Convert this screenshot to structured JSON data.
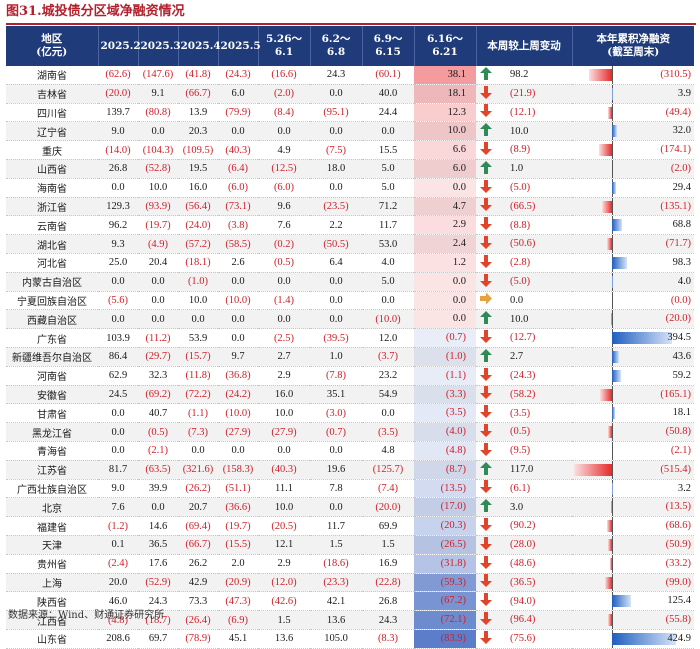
{
  "title": "图31.城投债分区域净融资情况",
  "source": "数据来源：Wind、财通证券研究所",
  "chart_data": {
    "type": "table",
    "columns": [
      "地区\n(亿元)",
      "2025.2",
      "2025.3",
      "2025.4",
      "2025.5",
      "5.26～6.1",
      "6.2～6.8",
      "6.9～6.15",
      "6.16～6.21",
      "本周较上周变动",
      "本年累积净融资\n(截至周末)"
    ],
    "rows": [
      {
        "region": "湖南省",
        "vals": [
          "(62.6)",
          "(147.6)",
          "(41.8)",
          "(24.3)",
          "(16.6)",
          "24.3",
          "(60.1)",
          "38.1"
        ],
        "dir": "up",
        "chg": "98.2",
        "cum": -310.5,
        "cum_label": "(310.5)"
      },
      {
        "region": "吉林省",
        "vals": [
          "(20.0)",
          "9.1",
          "(66.7)",
          "6.0",
          "(2.0)",
          "0.0",
          "40.0",
          "18.1"
        ],
        "dir": "down",
        "chg": "(21.9)",
        "cum": 3.9,
        "cum_label": "3.9"
      },
      {
        "region": "四川省",
        "vals": [
          "139.7",
          "(80.8)",
          "13.9",
          "(79.9)",
          "(8.4)",
          "(95.1)",
          "24.4",
          "12.3"
        ],
        "dir": "down",
        "chg": "(12.1)",
        "cum": -49.4,
        "cum_label": "(49.4)"
      },
      {
        "region": "辽宁省",
        "vals": [
          "9.0",
          "0.0",
          "20.3",
          "0.0",
          "0.0",
          "0.0",
          "0.0",
          "10.0"
        ],
        "dir": "up",
        "chg": "10.0",
        "cum": 32.0,
        "cum_label": "32.0"
      },
      {
        "region": "重庆",
        "vals": [
          "(14.0)",
          "(104.3)",
          "(109.5)",
          "(40.3)",
          "4.9",
          "(7.5)",
          "15.5",
          "6.6"
        ],
        "dir": "down",
        "chg": "(8.9)",
        "cum": -174.1,
        "cum_label": "(174.1)"
      },
      {
        "region": "山西省",
        "vals": [
          "26.8",
          "(52.8)",
          "19.5",
          "(6.4)",
          "(12.5)",
          "18.0",
          "5.0",
          "6.0"
        ],
        "dir": "up",
        "chg": "1.0",
        "cum": -2.0,
        "cum_label": "(2.0)"
      },
      {
        "region": "海南省",
        "vals": [
          "0.0",
          "10.0",
          "16.0",
          "(6.0)",
          "(6.0)",
          "0.0",
          "5.0",
          "0.0"
        ],
        "dir": "down",
        "chg": "(5.0)",
        "cum": 29.4,
        "cum_label": "29.4"
      },
      {
        "region": "浙江省",
        "vals": [
          "129.3",
          "(93.9)",
          "(56.4)",
          "(73.1)",
          "9.6",
          "(23.5)",
          "71.2",
          "4.7"
        ],
        "dir": "down",
        "chg": "(66.5)",
        "cum": -135.1,
        "cum_label": "(135.1)"
      },
      {
        "region": "云南省",
        "vals": [
          "96.2",
          "(19.7)",
          "(24.0)",
          "(3.8)",
          "7.6",
          "2.2",
          "11.7",
          "2.9"
        ],
        "dir": "down",
        "chg": "(8.8)",
        "cum": 68.8,
        "cum_label": "68.8"
      },
      {
        "region": "湖北省",
        "vals": [
          "9.3",
          "(4.9)",
          "(57.2)",
          "(58.5)",
          "(0.2)",
          "(50.5)",
          "53.0",
          "2.4"
        ],
        "dir": "down",
        "chg": "(50.6)",
        "cum": -71.7,
        "cum_label": "(71.7)"
      },
      {
        "region": "河北省",
        "vals": [
          "25.0",
          "20.4",
          "(18.1)",
          "2.6",
          "(0.5)",
          "6.4",
          "4.0",
          "1.2"
        ],
        "dir": "down",
        "chg": "(2.8)",
        "cum": 98.3,
        "cum_label": "98.3"
      },
      {
        "region": "内蒙古自治区",
        "vals": [
          "0.0",
          "0.0",
          "(1.0)",
          "0.0",
          "0.0",
          "0.0",
          "5.0",
          "0.0"
        ],
        "dir": "down",
        "chg": "(5.0)",
        "cum": 4.0,
        "cum_label": "4.0"
      },
      {
        "region": "宁夏回族自治区",
        "vals": [
          "(5.6)",
          "0.0",
          "10.0",
          "(10.0)",
          "(1.4)",
          "0.0",
          "0.0",
          "0.0"
        ],
        "dir": "flat",
        "chg": "0.0",
        "cum": 0.0,
        "cum_label": "(0.0)"
      },
      {
        "region": "西藏自治区",
        "vals": [
          "0.0",
          "0.0",
          "0.0",
          "0.0",
          "0.0",
          "0.0",
          "(10.0)",
          "0.0"
        ],
        "dir": "up",
        "chg": "10.0",
        "cum": -20.0,
        "cum_label": "(20.0)"
      },
      {
        "region": "广东省",
        "vals": [
          "103.9",
          "(11.2)",
          "53.9",
          "0.0",
          "(2.5)",
          "(39.5)",
          "12.0",
          "(0.7)"
        ],
        "dir": "down",
        "chg": "(12.7)",
        "cum": 394.5,
        "cum_label": "394.5"
      },
      {
        "region": "新疆维吾尔自治区",
        "vals": [
          "86.4",
          "(29.7)",
          "(15.7)",
          "9.7",
          "2.7",
          "1.0",
          "(3.7)",
          "(1.0)"
        ],
        "dir": "up",
        "chg": "2.7",
        "cum": 43.6,
        "cum_label": "43.6"
      },
      {
        "region": "河南省",
        "vals": [
          "62.9",
          "32.3",
          "(11.8)",
          "(36.8)",
          "2.9",
          "(7.8)",
          "23.2",
          "(1.1)"
        ],
        "dir": "down",
        "chg": "(24.3)",
        "cum": 59.2,
        "cum_label": "59.2"
      },
      {
        "region": "安徽省",
        "vals": [
          "24.5",
          "(69.2)",
          "(72.2)",
          "(24.2)",
          "16.0",
          "35.1",
          "54.9",
          "(3.3)"
        ],
        "dir": "down",
        "chg": "(58.2)",
        "cum": -165.1,
        "cum_label": "(165.1)"
      },
      {
        "region": "甘肃省",
        "vals": [
          "0.0",
          "40.7",
          "(1.1)",
          "(10.0)",
          "10.0",
          "(3.0)",
          "0.0",
          "(3.5)"
        ],
        "dir": "down",
        "chg": "(3.5)",
        "cum": 18.1,
        "cum_label": "18.1"
      },
      {
        "region": "黑龙江省",
        "vals": [
          "0.0",
          "(0.5)",
          "(7.3)",
          "(27.9)",
          "(27.9)",
          "(0.7)",
          "(3.5)",
          "(4.0)"
        ],
        "dir": "down",
        "chg": "(0.5)",
        "cum": -50.8,
        "cum_label": "(50.8)"
      },
      {
        "region": "青海省",
        "vals": [
          "0.0",
          "(2.1)",
          "0.0",
          "0.0",
          "0.0",
          "0.0",
          "4.8",
          "(4.8)"
        ],
        "dir": "down",
        "chg": "(9.5)",
        "cum": -2.1,
        "cum_label": "(2.1)"
      },
      {
        "region": "江苏省",
        "vals": [
          "81.7",
          "(63.5)",
          "(321.6)",
          "(158.3)",
          "(40.3)",
          "19.6",
          "(125.7)",
          "(8.7)"
        ],
        "dir": "up",
        "chg": "117.0",
        "cum": -515.4,
        "cum_label": "(515.4)"
      },
      {
        "region": "广西壮族自治区",
        "vals": [
          "9.0",
          "39.9",
          "(26.2)",
          "(51.1)",
          "11.1",
          "7.8",
          "(7.4)",
          "(13.5)"
        ],
        "dir": "down",
        "chg": "(6.1)",
        "cum": 3.2,
        "cum_label": "3.2"
      },
      {
        "region": "北京",
        "vals": [
          "7.6",
          "0.0",
          "20.7",
          "(36.6)",
          "10.0",
          "0.0",
          "(20.0)",
          "(17.0)"
        ],
        "dir": "up",
        "chg": "3.0",
        "cum": -13.5,
        "cum_label": "(13.5)"
      },
      {
        "region": "福建省",
        "vals": [
          "(1.2)",
          "14.6",
          "(69.4)",
          "(19.7)",
          "(20.5)",
          "11.7",
          "69.9",
          "(20.3)"
        ],
        "dir": "down",
        "chg": "(90.2)",
        "cum": -68.6,
        "cum_label": "(68.6)"
      },
      {
        "region": "天津",
        "vals": [
          "0.1",
          "36.5",
          "(66.7)",
          "(15.5)",
          "12.1",
          "1.5",
          "1.5",
          "(26.5)"
        ],
        "dir": "down",
        "chg": "(28.0)",
        "cum": -50.9,
        "cum_label": "(50.9)"
      },
      {
        "region": "贵州省",
        "vals": [
          "(2.4)",
          "17.6",
          "26.2",
          "2.0",
          "2.9",
          "(18.6)",
          "16.9",
          "(31.8)"
        ],
        "dir": "down",
        "chg": "(48.6)",
        "cum": -33.2,
        "cum_label": "(33.2)"
      },
      {
        "region": "上海",
        "vals": [
          "20.0",
          "(52.9)",
          "42.9",
          "(20.9)",
          "(12.0)",
          "(23.3)",
          "(22.8)",
          "(59.3)"
        ],
        "dir": "down",
        "chg": "(36.5)",
        "cum": -99.0,
        "cum_label": "(99.0)"
      },
      {
        "region": "陕西省",
        "vals": [
          "46.0",
          "24.3",
          "73.3",
          "(47.3)",
          "(42.6)",
          "42.1",
          "26.8",
          "(67.2)"
        ],
        "dir": "down",
        "chg": "(94.0)",
        "cum": 125.4,
        "cum_label": "125.4"
      },
      {
        "region": "江西省",
        "vals": [
          "(4.8)",
          "(18.7)",
          "(26.4)",
          "(6.9)",
          "1.5",
          "13.6",
          "24.3",
          "(72.1)"
        ],
        "dir": "down",
        "chg": "(96.4)",
        "cum": -55.8,
        "cum_label": "(55.8)"
      },
      {
        "region": "山东省",
        "vals": [
          "208.6",
          "69.7",
          "(78.9)",
          "45.1",
          "13.6",
          "105.0",
          "(8.3)",
          "(83.9)"
        ],
        "dir": "down",
        "chg": "(75.6)",
        "cum": 424.9,
        "cum_label": "424.9"
      }
    ],
    "hl_values": [
      38.1,
      18.1,
      12.3,
      10.0,
      6.6,
      6.0,
      0.0,
      4.7,
      2.9,
      2.4,
      1.2,
      0.0,
      0.0,
      0.0,
      -0.7,
      -1.0,
      -1.1,
      -3.3,
      -3.5,
      -4.0,
      -4.8,
      -8.7,
      -13.5,
      -17.0,
      -20.3,
      -26.5,
      -31.8,
      -59.3,
      -67.2,
      -72.1,
      -83.9
    ],
    "colors": {
      "header": "#1f3b7a",
      "neg_text": "#d0202a",
      "pos_fill": "#e8454d",
      "neg_fill": "#4a6fc4",
      "bar_pos": "#1f5fbf",
      "bar_neg": "#e62a2a",
      "arrow_up": "#2e8b57",
      "arrow_down": "#e0442a",
      "arrow_flat": "#e6a23c"
    }
  }
}
